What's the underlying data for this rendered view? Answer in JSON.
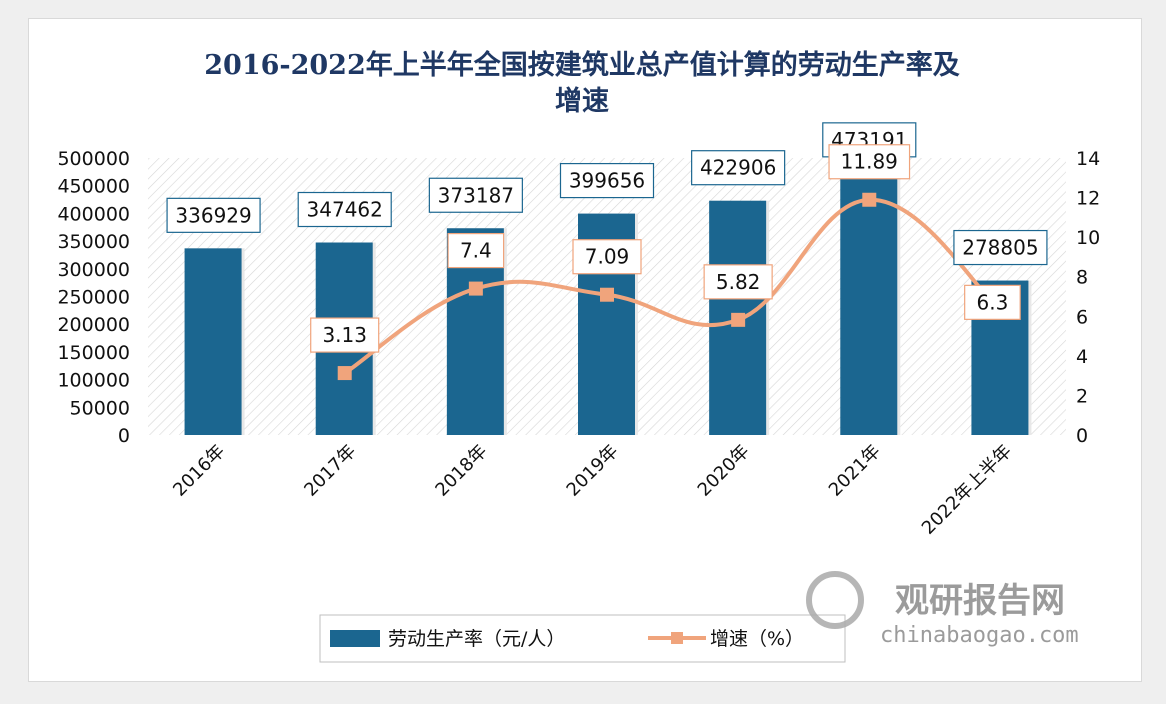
{
  "chart_data": {
    "type": "bar+line",
    "title": "2016-2022年上半年全国按建筑业总产值计算的劳动生产率及增速",
    "title_lines": [
      "2016-2022年上半年全国按建筑业总产值计算的劳动生产率及",
      "增速"
    ],
    "categories": [
      "2016年",
      "2017年",
      "2018年",
      "2019年",
      "2020年",
      "2021年",
      "2022年上半年"
    ],
    "series": [
      {
        "name": "劳动生产率（元/人）",
        "type": "bar",
        "axis": "left",
        "color": "#1b6690",
        "values": [
          336929,
          347462,
          373187,
          399656,
          422906,
          473191,
          278805
        ]
      },
      {
        "name": "增速（%）",
        "type": "line",
        "axis": "right",
        "color": "#f0a47c",
        "values": [
          null,
          3.13,
          7.4,
          7.09,
          5.82,
          11.89,
          6.3
        ]
      }
    ],
    "left_axis": {
      "ylim": [
        0,
        500000
      ],
      "ticks": [
        0,
        50000,
        100000,
        150000,
        200000,
        250000,
        300000,
        350000,
        400000,
        450000,
        500000
      ]
    },
    "right_axis": {
      "ylim": [
        0,
        14
      ],
      "ticks": [
        0,
        2,
        4,
        6,
        8,
        10,
        12,
        14
      ]
    },
    "legend_position": "bottom",
    "grid": false
  },
  "watermark": {
    "name": "观研报告网",
    "url": "chinabaogao.com"
  }
}
